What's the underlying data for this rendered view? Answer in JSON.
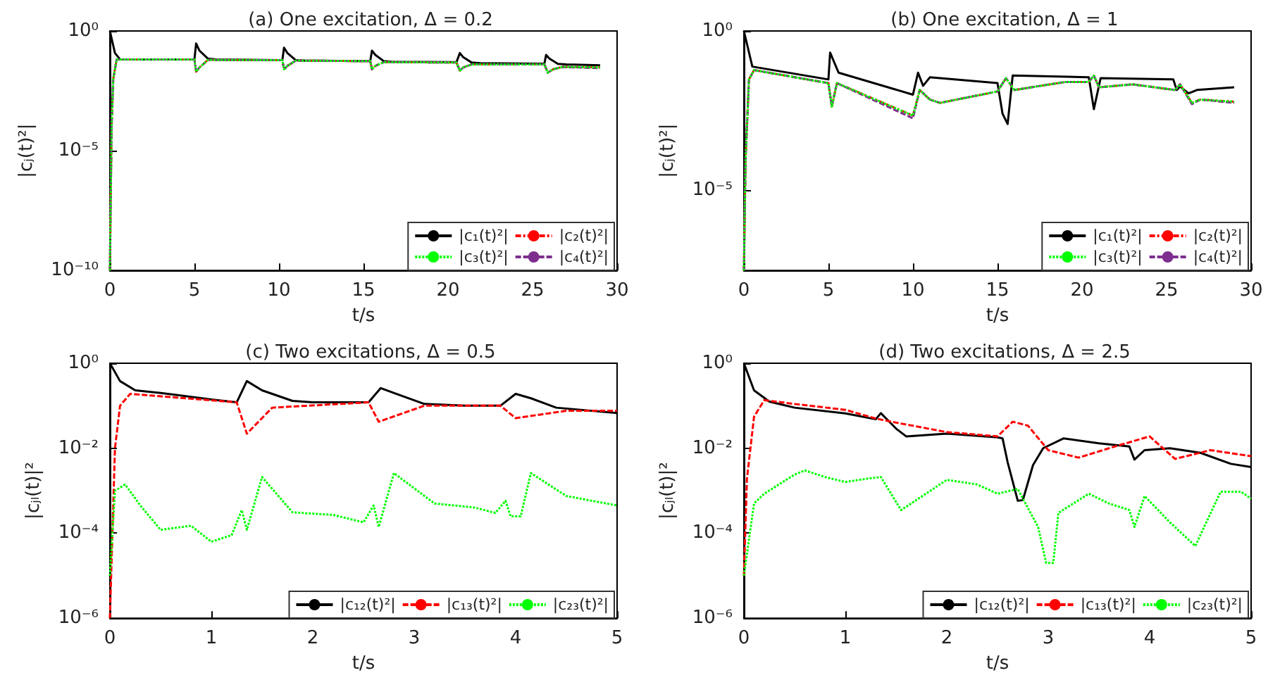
{
  "chart_data": [
    {
      "type": "line",
      "title": "(a) One excitation, Δ = 0.2",
      "xlabel": "t/s",
      "ylabel": "|cⱼ(t)²|",
      "log": "y",
      "grid": false,
      "legend": "bottom right",
      "xlim": [
        0,
        30
      ],
      "xticks": [
        0,
        5,
        10,
        15,
        20,
        25,
        30
      ],
      "ylim": [
        1e-10,
        1
      ],
      "yticks": [
        {
          "value": 1e-10,
          "label": "10⁻¹⁰"
        },
        {
          "value": 1e-05,
          "label": "10⁻⁵"
        },
        {
          "value": 1,
          "label": "10⁰"
        }
      ],
      "series": [
        {
          "name": "|c₁(t)²|",
          "color": "#000000",
          "line_style": "solid",
          "x": [
            0,
            0.3,
            0.6,
            5,
            5.1,
            5.3,
            5.8,
            6.3,
            10.2,
            10.3,
            10.5,
            11,
            11.5,
            15.4,
            15.5,
            15.7,
            16.2,
            16.7,
            20.5,
            20.7,
            20.9,
            21.4,
            21.9,
            25.7,
            25.8,
            26,
            26.5,
            27,
            29
          ],
          "values": [
            1,
            0.12,
            0.065,
            0.065,
            0.3,
            0.15,
            0.07,
            0.065,
            0.06,
            0.2,
            0.12,
            0.06,
            0.058,
            0.055,
            0.15,
            0.1,
            0.055,
            0.052,
            0.05,
            0.12,
            0.08,
            0.048,
            0.045,
            0.043,
            0.1,
            0.07,
            0.042,
            0.04,
            0.037
          ]
        },
        {
          "name": "|c₂(t)²|",
          "color": "#ff0000",
          "line_style": "dashdot",
          "x": [
            0,
            0.1,
            0.2,
            0.4,
            5,
            5.1,
            5.3,
            5.8,
            10.2,
            10.3,
            10.5,
            11,
            15.4,
            15.5,
            15.7,
            16.2,
            20.5,
            20.7,
            20.9,
            21.4,
            25.7,
            25.9,
            26.2,
            26.8,
            29
          ],
          "values": [
            1e-10,
            0.0001,
            0.01,
            0.065,
            0.065,
            0.02,
            0.03,
            0.062,
            0.06,
            0.025,
            0.035,
            0.058,
            0.055,
            0.025,
            0.035,
            0.05,
            0.048,
            0.022,
            0.03,
            0.04,
            0.04,
            0.018,
            0.025,
            0.032,
            0.03
          ]
        },
        {
          "name": "|c₃(t)²|",
          "color": "#00ff00",
          "line_style": "dotted",
          "x": [
            0,
            0.1,
            0.2,
            0.4,
            5,
            5.1,
            5.3,
            5.8,
            10.2,
            10.3,
            10.5,
            11,
            15.4,
            15.5,
            15.7,
            16.2,
            20.5,
            20.7,
            20.9,
            21.4,
            25.7,
            25.9,
            26.2,
            26.8,
            29
          ],
          "values": [
            1e-10,
            0.0001,
            0.01,
            0.065,
            0.065,
            0.02,
            0.03,
            0.062,
            0.06,
            0.025,
            0.035,
            0.058,
            0.055,
            0.025,
            0.035,
            0.05,
            0.048,
            0.022,
            0.03,
            0.04,
            0.04,
            0.018,
            0.025,
            0.032,
            0.03
          ]
        },
        {
          "name": "|c₄(t)²|",
          "color": "#7e2f8e",
          "line_style": "dashed",
          "x": [
            0,
            0.1,
            0.2,
            0.4,
            5,
            5.1,
            5.3,
            5.8,
            10.2,
            10.3,
            10.5,
            11,
            15.4,
            15.5,
            15.7,
            16.2,
            20.5,
            20.7,
            20.9,
            21.4,
            25.7,
            25.9,
            26.2,
            26.8,
            29
          ],
          "values": [
            1e-10,
            0.0001,
            0.01,
            0.065,
            0.065,
            0.02,
            0.03,
            0.062,
            0.06,
            0.025,
            0.035,
            0.058,
            0.055,
            0.025,
            0.035,
            0.05,
            0.048,
            0.022,
            0.03,
            0.04,
            0.04,
            0.018,
            0.025,
            0.031,
            0.028
          ]
        }
      ]
    },
    {
      "type": "line",
      "title": "(b) One excitation, Δ = 1",
      "xlabel": "t/s",
      "ylabel": "|cⱼ(t)²|",
      "log": "y",
      "grid": false,
      "legend": "bottom right",
      "xlim": [
        0,
        30
      ],
      "xticks": [
        0,
        5,
        10,
        15,
        20,
        25,
        30
      ],
      "ylim": [
        3e-08,
        1
      ],
      "yticks": [
        {
          "value": 1e-05,
          "label": "10⁻⁵"
        },
        {
          "value": 1,
          "label": "10⁰"
        }
      ],
      "series": [
        {
          "name": "|c₁(t)²|",
          "color": "#000000",
          "line_style": "solid",
          "x": [
            0,
            0.5,
            5,
            5.1,
            5.6,
            10,
            10.3,
            10.6,
            11,
            15,
            15.3,
            15.6,
            15.9,
            20.4,
            20.7,
            21.1,
            25.4,
            25.6,
            25.8,
            26.3,
            26.8,
            29
          ],
          "values": [
            1,
            0.076,
            0.03,
            0.21,
            0.049,
            0.01,
            0.049,
            0.019,
            0.035,
            0.023,
            0.0025,
            0.0012,
            0.04,
            0.035,
            0.0035,
            0.033,
            0.03,
            0.014,
            0.018,
            0.011,
            0.014,
            0.017
          ]
        },
        {
          "name": "|c₂(t)²|",
          "color": "#ff0000",
          "line_style": "dashdot",
          "x": [
            0,
            0.1,
            0.3,
            0.6,
            5,
            5.2,
            5.5,
            10,
            10.4,
            11,
            11.6,
            15,
            15.5,
            16,
            19,
            20.4,
            20.7,
            21,
            23,
            25.5,
            25.8,
            26.5,
            27,
            29
          ],
          "values": [
            3e-08,
            0.0001,
            0.03,
            0.059,
            0.023,
            0.0042,
            0.023,
            0.0022,
            0.014,
            0.007,
            0.0055,
            0.0126,
            0.033,
            0.014,
            0.025,
            0.025,
            0.04,
            0.017,
            0.021,
            0.014,
            0.021,
            0.0055,
            0.007,
            0.006
          ]
        },
        {
          "name": "|c₃(t)²|",
          "color": "#00ff00",
          "line_style": "dotted",
          "x": [
            0,
            0.1,
            0.3,
            0.6,
            5,
            5.2,
            5.5,
            10,
            10.4,
            11,
            11.6,
            15,
            15.5,
            16,
            19,
            20.4,
            20.7,
            21,
            23,
            25.5,
            25.8,
            26.5,
            27,
            29
          ],
          "values": [
            3e-08,
            0.0001,
            0.03,
            0.059,
            0.023,
            0.0042,
            0.023,
            0.0022,
            0.014,
            0.007,
            0.0055,
            0.0126,
            0.033,
            0.014,
            0.025,
            0.025,
            0.04,
            0.017,
            0.021,
            0.014,
            0.021,
            0.0055,
            0.007,
            0.006
          ]
        },
        {
          "name": "|c₄(t)²|",
          "color": "#7e2f8e",
          "line_style": "dashed",
          "x": [
            0,
            0.1,
            0.3,
            0.6,
            5,
            5.2,
            5.5,
            10,
            10.4,
            11,
            11.6,
            15,
            15.5,
            16,
            19,
            20.4,
            20.7,
            21,
            23,
            25.5,
            25.8,
            26.5,
            27,
            29
          ],
          "values": [
            3e-08,
            0.0001,
            0.03,
            0.059,
            0.023,
            0.0042,
            0.023,
            0.0018,
            0.014,
            0.007,
            0.0055,
            0.0126,
            0.033,
            0.014,
            0.025,
            0.025,
            0.04,
            0.017,
            0.021,
            0.014,
            0.021,
            0.005,
            0.007,
            0.0055
          ]
        }
      ]
    },
    {
      "type": "line",
      "title": "(c) Two excitations, Δ = 0.5",
      "xlabel": "t/s",
      "ylabel": "|cⱼₗ(t)|²",
      "log": "y",
      "grid": false,
      "legend": "bottom right",
      "xlim": [
        0,
        5
      ],
      "xticks": [
        0,
        1,
        2,
        3,
        4,
        5
      ],
      "ylim": [
        1e-06,
        1
      ],
      "yticks": [
        {
          "value": 1e-06,
          "label": "10⁻⁶"
        },
        {
          "value": 0.0001,
          "label": "10⁻⁴"
        },
        {
          "value": 0.01,
          "label": "10⁻²"
        },
        {
          "value": 1,
          "label": "10⁰"
        }
      ],
      "series": [
        {
          "name": "|c₁₂(t)²|",
          "color": "#000000",
          "line_style": "solid",
          "x": [
            0,
            0.1,
            0.25,
            0.5,
            1,
            1.25,
            1.35,
            1.5,
            1.8,
            2,
            2.55,
            2.67,
            2.85,
            3.1,
            3.5,
            3.85,
            4,
            4.15,
            4.4,
            5
          ],
          "values": [
            1,
            0.38,
            0.23,
            0.2,
            0.14,
            0.12,
            0.38,
            0.23,
            0.13,
            0.12,
            0.12,
            0.26,
            0.18,
            0.11,
            0.1,
            0.1,
            0.19,
            0.15,
            0.09,
            0.067
          ]
        },
        {
          "name": "|c₁₃(t)²|",
          "color": "#ff0000",
          "line_style": "dashed",
          "x": [
            0,
            0.05,
            0.1,
            0.2,
            1.25,
            1.35,
            1.6,
            2.55,
            2.65,
            3.1,
            3.85,
            4,
            4.5,
            5
          ],
          "values": [
            1e-06,
            0.01,
            0.1,
            0.19,
            0.12,
            0.022,
            0.09,
            0.12,
            0.042,
            0.1,
            0.1,
            0.051,
            0.076,
            0.076
          ]
        },
        {
          "name": "|c₂₃(t)²|",
          "color": "#00ff00",
          "line_style": "dotted",
          "x": [
            0,
            0.05,
            0.15,
            0.3,
            0.5,
            0.8,
            1,
            1.2,
            1.3,
            1.35,
            1.5,
            1.8,
            2.2,
            2.5,
            2.6,
            2.65,
            2.8,
            3.2,
            3.6,
            3.8,
            3.9,
            3.95,
            4.05,
            4.15,
            4.5,
            5
          ],
          "values": [
            1e-05,
            0.001,
            0.0014,
            0.00045,
            0.00012,
            0.00015,
            6.3e-05,
            9e-05,
            0.00035,
            0.00012,
            0.0021,
            0.00031,
            0.00027,
            0.00018,
            0.00045,
            0.00014,
            0.0026,
            0.0005,
            0.0004,
            0.0003,
            0.00058,
            0.00025,
            0.00025,
            0.0026,
            0.00075,
            0.00045
          ]
        }
      ]
    },
    {
      "type": "line",
      "title": "(d) Two excitations, Δ = 2.5",
      "xlabel": "t/s",
      "ylabel": "|cⱼₗ(t)|²",
      "log": "y",
      "grid": false,
      "legend": "bottom right",
      "xlim": [
        0,
        5
      ],
      "xticks": [
        0,
        1,
        2,
        3,
        4,
        5
      ],
      "ylim": [
        1e-06,
        1
      ],
      "yticks": [
        {
          "value": 1e-06,
          "label": "10⁻⁶"
        },
        {
          "value": 0.0001,
          "label": "10⁻⁴"
        },
        {
          "value": 0.01,
          "label": "10⁻²"
        },
        {
          "value": 1,
          "label": "10⁰"
        }
      ],
      "series": [
        {
          "name": "|c₁₂(t)²|",
          "color": "#000000",
          "line_style": "solid",
          "x": [
            0,
            0.1,
            0.25,
            0.5,
            1,
            1.3,
            1.35,
            1.5,
            1.6,
            2,
            2.5,
            2.55,
            2.6,
            2.7,
            2.75,
            2.85,
            2.95,
            3.15,
            3.5,
            3.8,
            3.85,
            3.95,
            4.2,
            4.5,
            4.8,
            5
          ],
          "values": [
            1,
            0.23,
            0.125,
            0.09,
            0.066,
            0.048,
            0.067,
            0.029,
            0.019,
            0.022,
            0.018,
            0.017,
            0.0047,
            0.00058,
            0.0006,
            0.004,
            0.01,
            0.017,
            0.013,
            0.011,
            0.0054,
            0.009,
            0.01,
            0.0078,
            0.0043,
            0.0036
          ]
        },
        {
          "name": "|c₁₃(t)²|",
          "color": "#ff0000",
          "line_style": "dashed",
          "x": [
            0,
            0.03,
            0.1,
            0.2,
            0.5,
            1,
            1.3,
            1.5,
            2,
            2.5,
            2.65,
            2.8,
            3,
            3.3,
            3.6,
            4,
            4.25,
            4.6,
            5
          ],
          "values": [
            1e-05,
            0.0019,
            0.055,
            0.135,
            0.11,
            0.08,
            0.05,
            0.04,
            0.024,
            0.019,
            0.042,
            0.034,
            0.009,
            0.006,
            0.01,
            0.019,
            0.0056,
            0.009,
            0.0065
          ]
        },
        {
          "name": "|c₂₃(t)²|",
          "color": "#00ff00",
          "line_style": "dotted",
          "x": [
            0,
            0.1,
            0.2,
            0.5,
            0.6,
            0.8,
            1,
            1.2,
            1.35,
            1.55,
            2,
            2.3,
            2.5,
            2.7,
            2.9,
            2.98,
            3.05,
            3.1,
            3.4,
            3.6,
            3.8,
            3.85,
            3.95,
            4.2,
            4.45,
            4.7,
            4.9,
            5
          ],
          "values": [
            1e-05,
            0.0005,
            0.00085,
            0.0024,
            0.003,
            0.0021,
            0.0016,
            0.0019,
            0.0021,
            0.00035,
            0.0018,
            0.0014,
            0.00085,
            0.0011,
            0.00014,
            2e-05,
            2e-05,
            0.0003,
            0.00085,
            0.0005,
            0.00035,
            0.00014,
            0.00075,
            0.00018,
            5e-05,
            0.00095,
            0.00095,
            0.00065
          ]
        }
      ]
    }
  ]
}
